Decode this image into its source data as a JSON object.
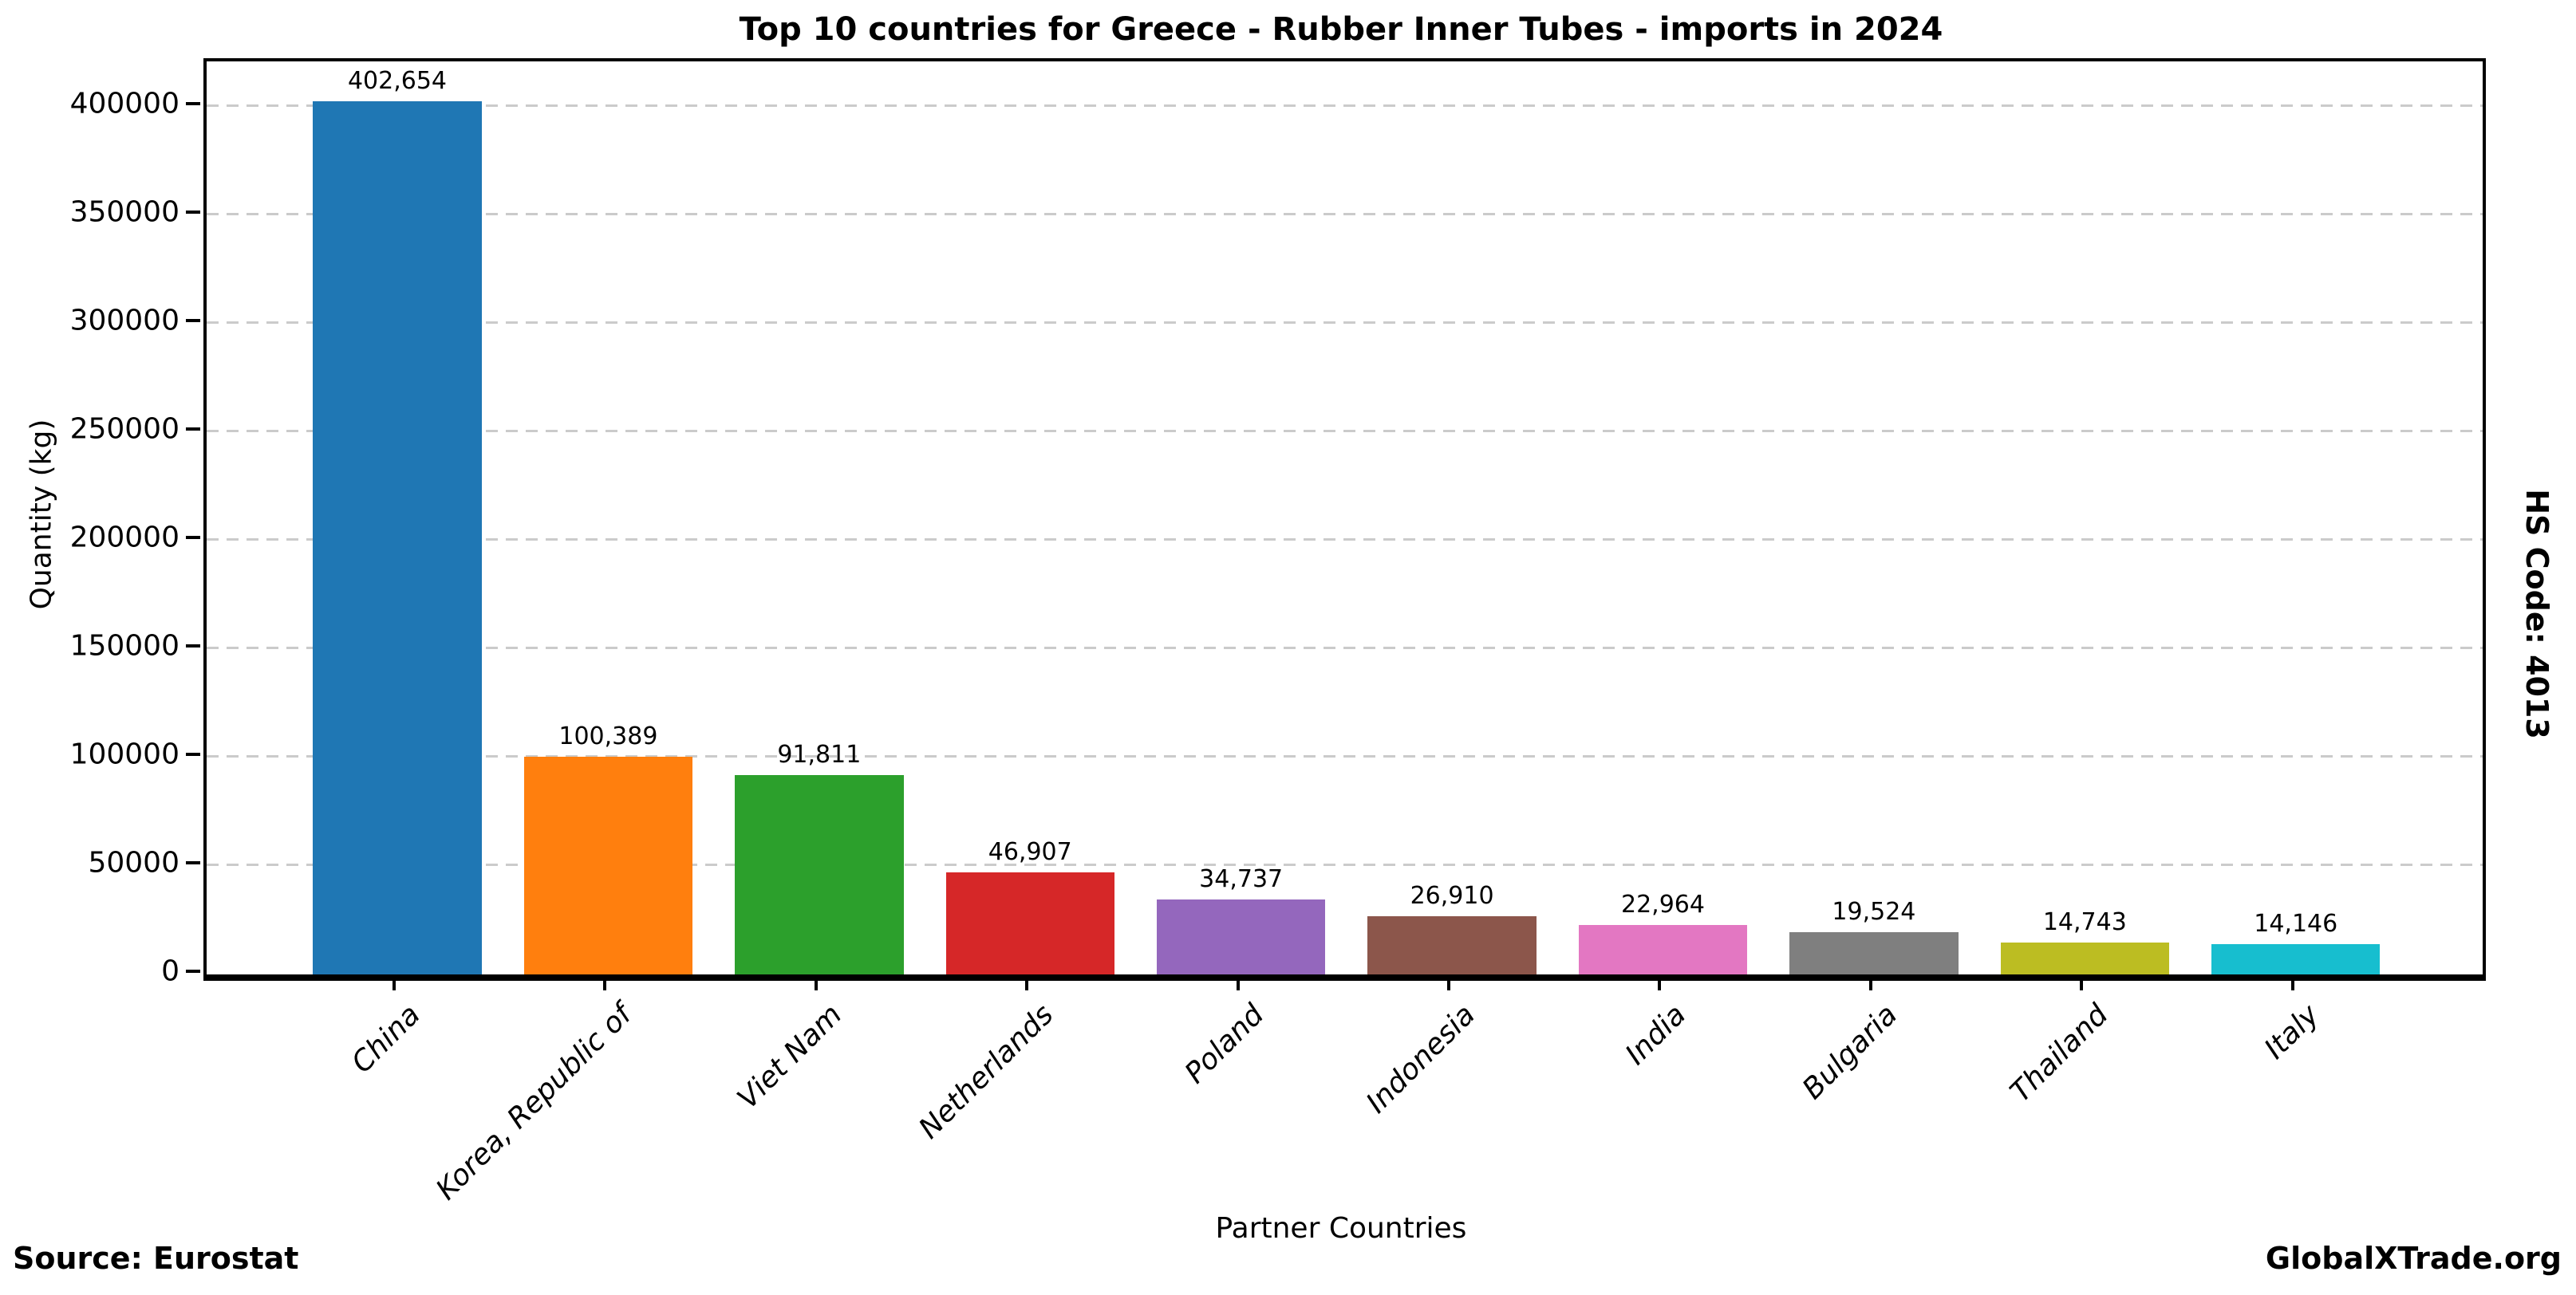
{
  "title": "Top 10 countries for Greece - Rubber Inner Tubes - imports in 2024",
  "source_note": "Source: Eurostat",
  "brand": "GlobalXTrade.org",
  "hs_code_label": "HS Code: 4013",
  "chart_data": {
    "type": "bar",
    "title": "Top 10 countries for Greece - Rubber Inner Tubes - imports in 2024",
    "xlabel": "Partner Countries",
    "ylabel": "Quantity (kg)",
    "categories": [
      "China",
      "Korea, Republic of",
      "Viet Nam",
      "Netherlands",
      "Poland",
      "Indonesia",
      "India",
      "Bulgaria",
      "Thailand",
      "Italy"
    ],
    "values": [
      402654,
      100389,
      91811,
      46907,
      34737,
      26910,
      22964,
      19524,
      14743,
      14146
    ],
    "value_labels": [
      "402,654",
      "100,389",
      "91,811",
      "46,907",
      "34,737",
      "26,910",
      "22,964",
      "19,524",
      "14,743",
      "14,146"
    ],
    "bar_colors": [
      "#1f77b4",
      "#ff7f0e",
      "#2ca02c",
      "#d62728",
      "#9467bd",
      "#8c564b",
      "#e377c2",
      "#7f7f7f",
      "#bcbd22",
      "#17becf"
    ],
    "yticks": [
      0,
      50000,
      100000,
      150000,
      200000,
      250000,
      300000,
      350000,
      400000
    ],
    "ylim": [
      0,
      421000
    ],
    "grid": true,
    "grid_color": "#cbcbcb",
    "grid_style": "dashed",
    "legend_position": "none"
  }
}
